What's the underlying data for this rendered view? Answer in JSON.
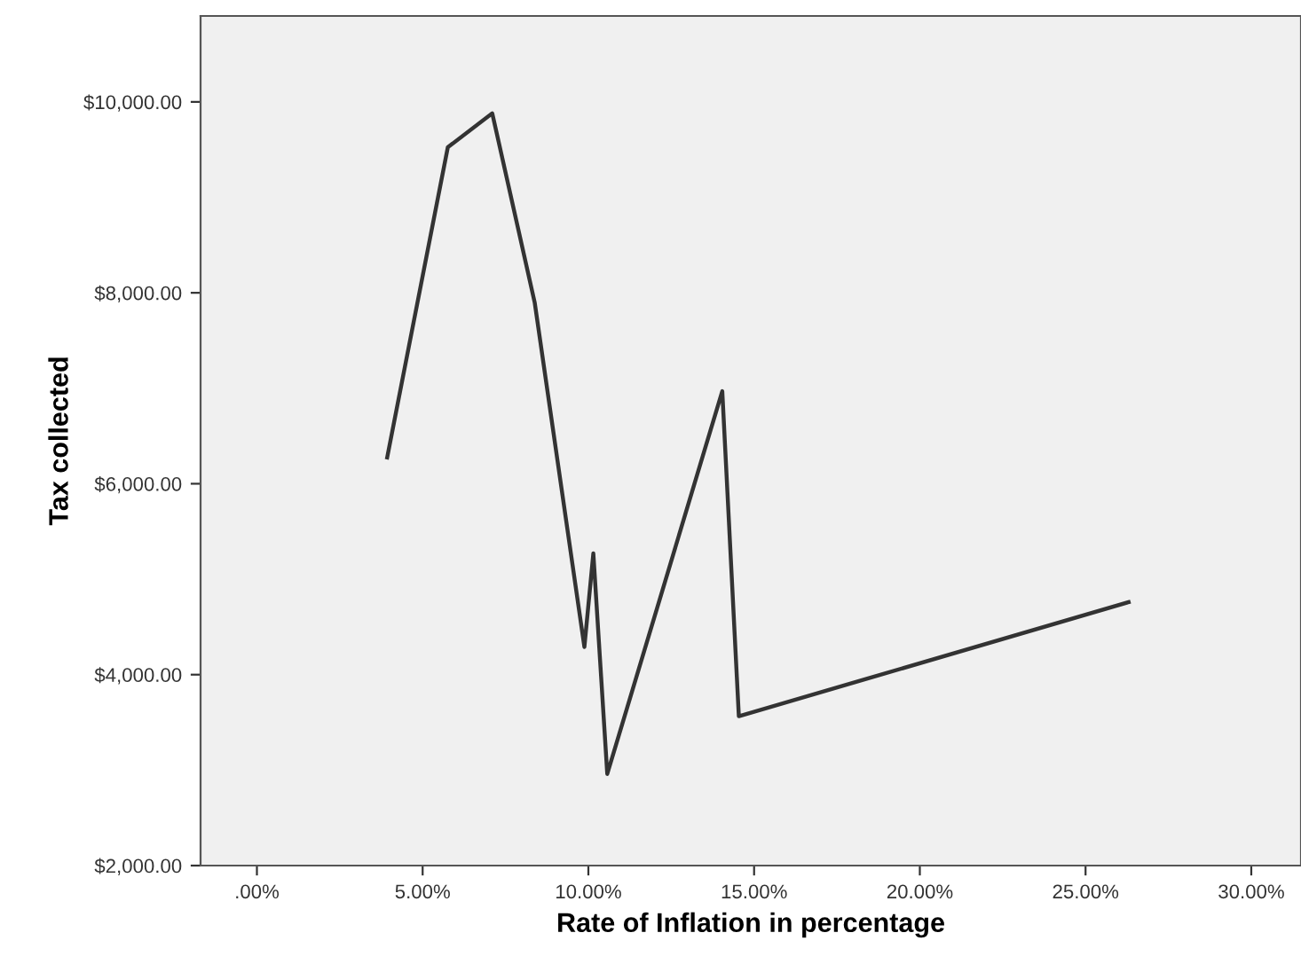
{
  "chart_data": {
    "type": "line",
    "xlabel": "Rate of Inflation in percentage",
    "ylabel": "Tax collected",
    "x": [
      3.93,
      5.76,
      7.1,
      8.38,
      9.88,
      10.15,
      10.57,
      14.04,
      14.54,
      26.3
    ],
    "series": [
      {
        "color": "#333333",
        "values": [
          6275,
          9525,
          9880,
          7900,
          4290,
          5270,
          2960,
          6970,
          3565,
          4760
        ]
      }
    ],
    "xlim": [
      -1.7,
      31.5
    ],
    "ylim": [
      2000,
      10900
    ],
    "xticks": [
      {
        "value": 0,
        "label": ".00%"
      },
      {
        "value": 5,
        "label": "5.00%"
      },
      {
        "value": 10,
        "label": "10.00%"
      },
      {
        "value": 15,
        "label": "15.00%"
      },
      {
        "value": 20,
        "label": "20.00%"
      },
      {
        "value": 25,
        "label": "25.00%"
      },
      {
        "value": 30,
        "label": "30.00%"
      }
    ],
    "yticks": [
      {
        "value": 2000,
        "label": "$2,000.00"
      },
      {
        "value": 4000,
        "label": "$4,000.00"
      },
      {
        "value": 6000,
        "label": "$6,000.00"
      },
      {
        "value": 8000,
        "label": "$8,000.00"
      },
      {
        "value": 10000,
        "label": "$10,000.00"
      }
    ],
    "grid": false,
    "legend": false,
    "marker": "none",
    "line_style": "solid"
  }
}
